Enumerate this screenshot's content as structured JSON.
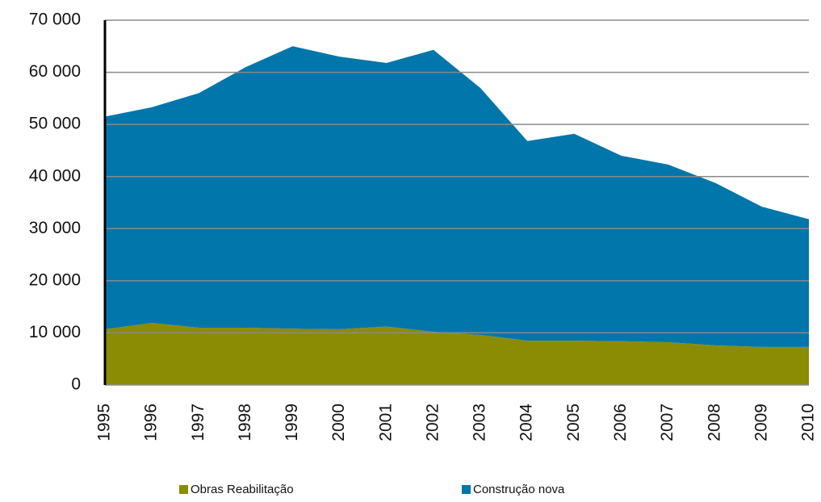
{
  "chart_data": {
    "type": "stacked_area",
    "x": [
      "1995",
      "1996",
      "1997",
      "1998",
      "1999",
      "2000",
      "2001",
      "2002",
      "2003",
      "2004",
      "2005",
      "2006",
      "2007",
      "2008",
      "2009",
      "2010"
    ],
    "series": [
      {
        "name": "Obras Reabilitação",
        "color": "#8c8c04",
        "values": [
          10700,
          11900,
          11000,
          11000,
          10800,
          10700,
          11200,
          10200,
          9600,
          8500,
          8500,
          8400,
          8200,
          7600,
          7300,
          7300
        ]
      },
      {
        "name": "Construção nova",
        "color": "#0076ab",
        "values": [
          40800,
          41400,
          45000,
          50000,
          54200,
          52300,
          50600,
          54100,
          47400,
          38300,
          39700,
          35600,
          34100,
          31200,
          26900,
          24500
        ]
      }
    ],
    "ylim": [
      0,
      70000
    ],
    "yticks": [
      0,
      {
        "value": 10000,
        "label": "10 000"
      },
      {
        "value": 20000,
        "label": "20 000"
      },
      {
        "value": 30000,
        "label": "30 000"
      },
      {
        "value": 40000,
        "label": "40 000"
      },
      {
        "value": 50000,
        "label": "50 000"
      },
      {
        "value": 60000,
        "label": "60 000"
      },
      {
        "value": 70000,
        "label": "70 000"
      }
    ],
    "grid": true,
    "legend": "bottom"
  }
}
